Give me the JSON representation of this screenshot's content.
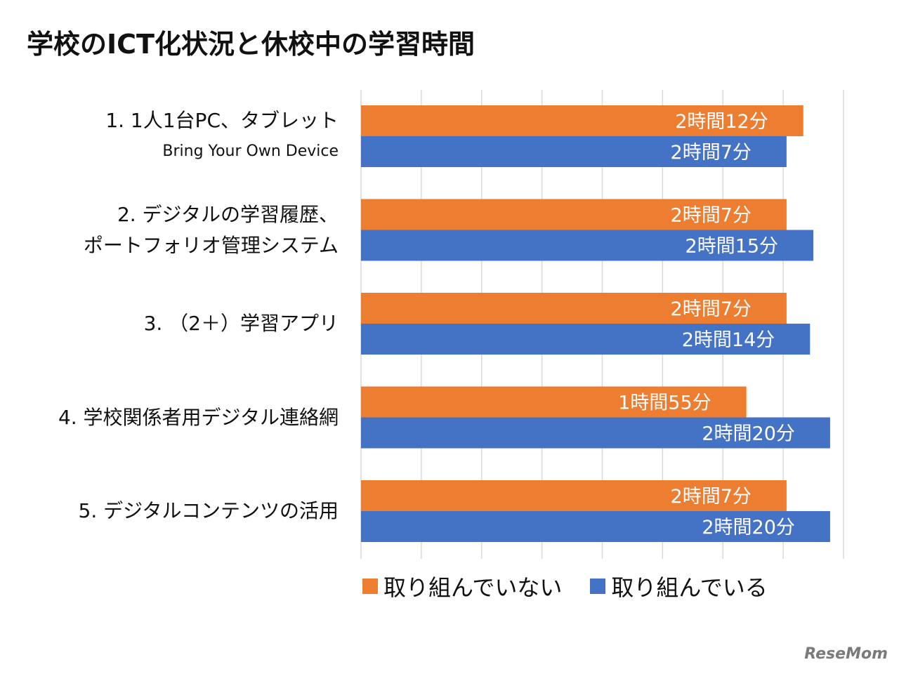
{
  "chart_data": {
    "type": "bar",
    "orientation": "horizontal",
    "title": "学校のICT化状況と休校中の学習時間",
    "categories": [
      {
        "label": "1. 1人1台PC、タブレット",
        "sublabel": "Bring Your Own Device"
      },
      {
        "label": "2. デジタルの学習履歴、",
        "sublabel": "ポートフォリオ管理システム"
      },
      {
        "label": "3. （2＋）学習アプリ",
        "sublabel": ""
      },
      {
        "label": "4. 学校関係者用デジタル連絡網",
        "sublabel": ""
      },
      {
        "label": "5. デジタルコンテンツの活用",
        "sublabel": ""
      }
    ],
    "series": [
      {
        "name": "取り組んでいない",
        "color": "#ED7D31",
        "values": [
          132,
          127,
          127,
          115,
          127
        ],
        "labels": [
          "2時間12分",
          "2時間7分",
          "2時間7分",
          "1時間55分",
          "2時間7分"
        ]
      },
      {
        "name": "取り組んでいる",
        "color": "#4472C4",
        "values": [
          127,
          135,
          134,
          140,
          140
        ],
        "labels": [
          "2時間7分",
          "2時間15分",
          "2時間14分",
          "2時間20分",
          "2時間20分"
        ]
      }
    ],
    "xlim": [
      0,
      144
    ],
    "grid": true,
    "legend": "bottom"
  },
  "watermark": "ReseMom"
}
